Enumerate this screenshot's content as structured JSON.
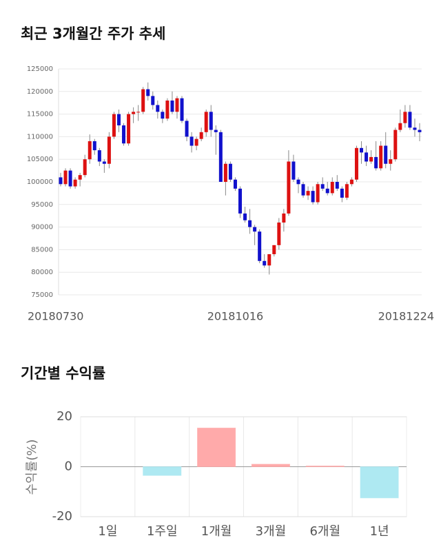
{
  "chart_data": [
    {
      "type": "candlestick",
      "title": "최근 3개월간 주가 추세",
      "up_color": "#dd1111",
      "down_color": "#1111cc",
      "ylim": [
        75000,
        125000
      ],
      "yticks": [
        75000,
        80000,
        85000,
        90000,
        95000,
        100000,
        105000,
        110000,
        115000,
        120000,
        125000
      ],
      "grid": true,
      "categories": [
        "20180730",
        null,
        null,
        null,
        null,
        null,
        null,
        null,
        null,
        null,
        null,
        null,
        null,
        null,
        null,
        null,
        null,
        null,
        null,
        null,
        null,
        null,
        null,
        null,
        null,
        null,
        null,
        null,
        null,
        null,
        null,
        null,
        null,
        null,
        null,
        null,
        "20181016",
        null,
        null,
        null,
        null,
        null,
        null,
        null,
        null,
        null,
        null,
        null,
        null,
        null,
        null,
        null,
        null,
        null,
        null,
        null,
        null,
        null,
        null,
        null,
        null,
        null,
        null,
        null,
        null,
        null,
        null,
        null,
        null,
        null,
        null,
        null,
        null,
        null,
        "20181224"
      ],
      "ohlc": [
        [
          101000,
          102000,
          99000,
          99500
        ],
        [
          99500,
          103000,
          99000,
          102500
        ],
        [
          102500,
          103000,
          98500,
          99000
        ],
        [
          99000,
          101000,
          98500,
          100500
        ],
        [
          100500,
          102000,
          99000,
          101500
        ],
        [
          101500,
          106000,
          101000,
          105000
        ],
        [
          105000,
          110500,
          104000,
          109000
        ],
        [
          109000,
          109500,
          106000,
          107000
        ],
        [
          107000,
          107500,
          103500,
          104500
        ],
        [
          104500,
          105000,
          102000,
          104000
        ],
        [
          104000,
          111000,
          103000,
          110000
        ],
        [
          110000,
          115500,
          109500,
          115000
        ],
        [
          115000,
          116000,
          111000,
          112500
        ],
        [
          112500,
          113000,
          108000,
          108500
        ],
        [
          108500,
          115500,
          108000,
          115000
        ],
        [
          115000,
          116500,
          113000,
          115500
        ],
        [
          115500,
          117000,
          113500,
          115500
        ],
        [
          115500,
          121000,
          115000,
          120500
        ],
        [
          120500,
          122000,
          118000,
          119000
        ],
        [
          119000,
          120000,
          116000,
          117000
        ],
        [
          117000,
          118000,
          114000,
          115500
        ],
        [
          115500,
          116000,
          113000,
          114000
        ],
        [
          114000,
          118500,
          113500,
          118000
        ],
        [
          118000,
          120000,
          115000,
          115500
        ],
        [
          115500,
          119000,
          114000,
          118500
        ],
        [
          118500,
          119000,
          113000,
          113500
        ],
        [
          113500,
          114000,
          109000,
          110000
        ],
        [
          110000,
          111000,
          106500,
          108000
        ],
        [
          108000,
          110000,
          107000,
          109500
        ],
        [
          109500,
          112000,
          109000,
          111000
        ],
        [
          111000,
          116000,
          110000,
          115500
        ],
        [
          115500,
          117000,
          110000,
          111500
        ],
        [
          111500,
          112500,
          106000,
          111000
        ],
        [
          111000,
          111500,
          100000,
          100000
        ],
        [
          100000,
          104500,
          97000,
          104000
        ],
        [
          104000,
          104500,
          100000,
          100500
        ],
        [
          100500,
          101000,
          98000,
          98500
        ],
        [
          98500,
          99000,
          92000,
          93000
        ],
        [
          93000,
          94500,
          91000,
          91500
        ],
        [
          91500,
          94000,
          88500,
          90000
        ],
        [
          90000,
          90500,
          86000,
          89000
        ],
        [
          89000,
          89500,
          82000,
          82500
        ],
        [
          82500,
          84000,
          81000,
          81500
        ],
        [
          81500,
          84000,
          79500,
          84000
        ],
        [
          84000,
          86000,
          83500,
          86000
        ],
        [
          86000,
          92000,
          85000,
          91000
        ],
        [
          91000,
          94000,
          89000,
          93000
        ],
        [
          93000,
          107000,
          92500,
          104500
        ],
        [
          104500,
          106000,
          100000,
          100500
        ],
        [
          100500,
          101000,
          97500,
          99500
        ],
        [
          99500,
          100000,
          96500,
          97000
        ],
        [
          97000,
          99000,
          96000,
          98000
        ],
        [
          98000,
          99000,
          95000,
          95500
        ],
        [
          95500,
          100000,
          95000,
          99500
        ],
        [
          99500,
          101000,
          98000,
          98500
        ],
        [
          98500,
          100000,
          97000,
          97500
        ],
        [
          97500,
          101000,
          97000,
          100000
        ],
        [
          100000,
          101500,
          98000,
          98500
        ],
        [
          98500,
          99000,
          95500,
          96500
        ],
        [
          96500,
          100000,
          96000,
          99500
        ],
        [
          99500,
          101000,
          99000,
          100500
        ],
        [
          100500,
          108000,
          100000,
          107500
        ],
        [
          107500,
          109000,
          104000,
          106500
        ],
        [
          106500,
          108000,
          103500,
          104500
        ],
        [
          104500,
          107000,
          104000,
          105500
        ],
        [
          105500,
          109000,
          102500,
          103000
        ],
        [
          103000,
          109000,
          102500,
          108000
        ],
        [
          108000,
          111000,
          103000,
          104000
        ],
        [
          104000,
          107000,
          102500,
          105000
        ],
        [
          105000,
          112000,
          104500,
          111500
        ],
        [
          111500,
          116000,
          111000,
          113000
        ],
        [
          113000,
          117000,
          112000,
          115500
        ],
        [
          115500,
          117000,
          111500,
          112000
        ],
        [
          112000,
          114000,
          110000,
          111500
        ],
        [
          111500,
          113000,
          109000,
          111000
        ]
      ]
    },
    {
      "type": "bar",
      "title": "기간별 수익률",
      "ylabel": "수익률(%)",
      "categories": [
        "1일",
        "1주일",
        "1개월",
        "3개월",
        "6개월",
        "1년"
      ],
      "values": [
        0,
        -3.5,
        15.5,
        1,
        0.3,
        -12.5
      ],
      "colors": [
        "#aee9f2",
        "#aee9f2",
        "#ffaaaa",
        "#ffaaaa",
        "#ffaaaa",
        "#aee9f2"
      ],
      "ylim": [
        -20,
        20
      ],
      "yticks": [
        -20,
        0,
        20
      ],
      "grid": true
    }
  ]
}
